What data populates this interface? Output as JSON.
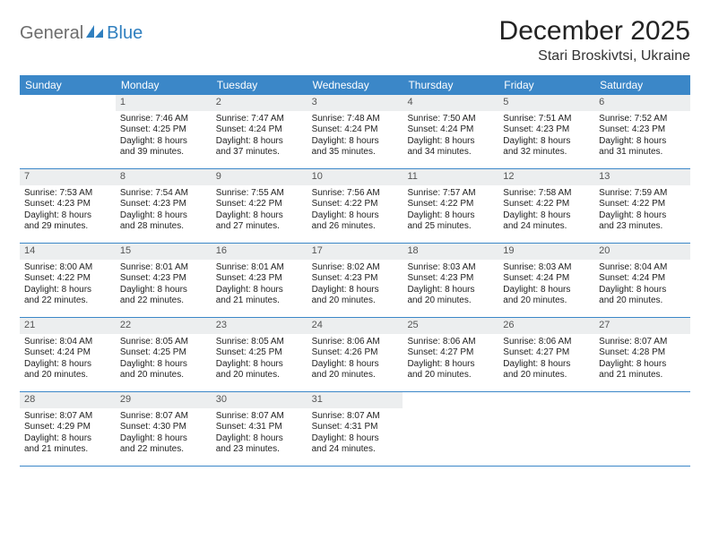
{
  "logo": {
    "part1": "General",
    "part2": "Blue"
  },
  "title": "December 2025",
  "location": "Stari Broskivtsi, Ukraine",
  "colors": {
    "header_bg": "#3b87c8",
    "header_text": "#ffffff",
    "daynum_bg": "#eceeef",
    "rule": "#3b87c8",
    "logo_gray": "#6d6d6d",
    "logo_blue": "#2f7fbf"
  },
  "weekdays": [
    "Sunday",
    "Monday",
    "Tuesday",
    "Wednesday",
    "Thursday",
    "Friday",
    "Saturday"
  ],
  "weeks": [
    [
      {
        "empty": true
      },
      {
        "n": "1",
        "sr": "Sunrise: 7:46 AM",
        "ss": "Sunset: 4:25 PM",
        "d1": "Daylight: 8 hours",
        "d2": "and 39 minutes."
      },
      {
        "n": "2",
        "sr": "Sunrise: 7:47 AM",
        "ss": "Sunset: 4:24 PM",
        "d1": "Daylight: 8 hours",
        "d2": "and 37 minutes."
      },
      {
        "n": "3",
        "sr": "Sunrise: 7:48 AM",
        "ss": "Sunset: 4:24 PM",
        "d1": "Daylight: 8 hours",
        "d2": "and 35 minutes."
      },
      {
        "n": "4",
        "sr": "Sunrise: 7:50 AM",
        "ss": "Sunset: 4:24 PM",
        "d1": "Daylight: 8 hours",
        "d2": "and 34 minutes."
      },
      {
        "n": "5",
        "sr": "Sunrise: 7:51 AM",
        "ss": "Sunset: 4:23 PM",
        "d1": "Daylight: 8 hours",
        "d2": "and 32 minutes."
      },
      {
        "n": "6",
        "sr": "Sunrise: 7:52 AM",
        "ss": "Sunset: 4:23 PM",
        "d1": "Daylight: 8 hours",
        "d2": "and 31 minutes."
      }
    ],
    [
      {
        "n": "7",
        "sr": "Sunrise: 7:53 AM",
        "ss": "Sunset: 4:23 PM",
        "d1": "Daylight: 8 hours",
        "d2": "and 29 minutes."
      },
      {
        "n": "8",
        "sr": "Sunrise: 7:54 AM",
        "ss": "Sunset: 4:23 PM",
        "d1": "Daylight: 8 hours",
        "d2": "and 28 minutes."
      },
      {
        "n": "9",
        "sr": "Sunrise: 7:55 AM",
        "ss": "Sunset: 4:22 PM",
        "d1": "Daylight: 8 hours",
        "d2": "and 27 minutes."
      },
      {
        "n": "10",
        "sr": "Sunrise: 7:56 AM",
        "ss": "Sunset: 4:22 PM",
        "d1": "Daylight: 8 hours",
        "d2": "and 26 minutes."
      },
      {
        "n": "11",
        "sr": "Sunrise: 7:57 AM",
        "ss": "Sunset: 4:22 PM",
        "d1": "Daylight: 8 hours",
        "d2": "and 25 minutes."
      },
      {
        "n": "12",
        "sr": "Sunrise: 7:58 AM",
        "ss": "Sunset: 4:22 PM",
        "d1": "Daylight: 8 hours",
        "d2": "and 24 minutes."
      },
      {
        "n": "13",
        "sr": "Sunrise: 7:59 AM",
        "ss": "Sunset: 4:22 PM",
        "d1": "Daylight: 8 hours",
        "d2": "and 23 minutes."
      }
    ],
    [
      {
        "n": "14",
        "sr": "Sunrise: 8:00 AM",
        "ss": "Sunset: 4:22 PM",
        "d1": "Daylight: 8 hours",
        "d2": "and 22 minutes."
      },
      {
        "n": "15",
        "sr": "Sunrise: 8:01 AM",
        "ss": "Sunset: 4:23 PM",
        "d1": "Daylight: 8 hours",
        "d2": "and 22 minutes."
      },
      {
        "n": "16",
        "sr": "Sunrise: 8:01 AM",
        "ss": "Sunset: 4:23 PM",
        "d1": "Daylight: 8 hours",
        "d2": "and 21 minutes."
      },
      {
        "n": "17",
        "sr": "Sunrise: 8:02 AM",
        "ss": "Sunset: 4:23 PM",
        "d1": "Daylight: 8 hours",
        "d2": "and 20 minutes."
      },
      {
        "n": "18",
        "sr": "Sunrise: 8:03 AM",
        "ss": "Sunset: 4:23 PM",
        "d1": "Daylight: 8 hours",
        "d2": "and 20 minutes."
      },
      {
        "n": "19",
        "sr": "Sunrise: 8:03 AM",
        "ss": "Sunset: 4:24 PM",
        "d1": "Daylight: 8 hours",
        "d2": "and 20 minutes."
      },
      {
        "n": "20",
        "sr": "Sunrise: 8:04 AM",
        "ss": "Sunset: 4:24 PM",
        "d1": "Daylight: 8 hours",
        "d2": "and 20 minutes."
      }
    ],
    [
      {
        "n": "21",
        "sr": "Sunrise: 8:04 AM",
        "ss": "Sunset: 4:24 PM",
        "d1": "Daylight: 8 hours",
        "d2": "and 20 minutes."
      },
      {
        "n": "22",
        "sr": "Sunrise: 8:05 AM",
        "ss": "Sunset: 4:25 PM",
        "d1": "Daylight: 8 hours",
        "d2": "and 20 minutes."
      },
      {
        "n": "23",
        "sr": "Sunrise: 8:05 AM",
        "ss": "Sunset: 4:25 PM",
        "d1": "Daylight: 8 hours",
        "d2": "and 20 minutes."
      },
      {
        "n": "24",
        "sr": "Sunrise: 8:06 AM",
        "ss": "Sunset: 4:26 PM",
        "d1": "Daylight: 8 hours",
        "d2": "and 20 minutes."
      },
      {
        "n": "25",
        "sr": "Sunrise: 8:06 AM",
        "ss": "Sunset: 4:27 PM",
        "d1": "Daylight: 8 hours",
        "d2": "and 20 minutes."
      },
      {
        "n": "26",
        "sr": "Sunrise: 8:06 AM",
        "ss": "Sunset: 4:27 PM",
        "d1": "Daylight: 8 hours",
        "d2": "and 20 minutes."
      },
      {
        "n": "27",
        "sr": "Sunrise: 8:07 AM",
        "ss": "Sunset: 4:28 PM",
        "d1": "Daylight: 8 hours",
        "d2": "and 21 minutes."
      }
    ],
    [
      {
        "n": "28",
        "sr": "Sunrise: 8:07 AM",
        "ss": "Sunset: 4:29 PM",
        "d1": "Daylight: 8 hours",
        "d2": "and 21 minutes."
      },
      {
        "n": "29",
        "sr": "Sunrise: 8:07 AM",
        "ss": "Sunset: 4:30 PM",
        "d1": "Daylight: 8 hours",
        "d2": "and 22 minutes."
      },
      {
        "n": "30",
        "sr": "Sunrise: 8:07 AM",
        "ss": "Sunset: 4:31 PM",
        "d1": "Daylight: 8 hours",
        "d2": "and 23 minutes."
      },
      {
        "n": "31",
        "sr": "Sunrise: 8:07 AM",
        "ss": "Sunset: 4:31 PM",
        "d1": "Daylight: 8 hours",
        "d2": "and 24 minutes."
      },
      {
        "empty": true
      },
      {
        "empty": true
      },
      {
        "empty": true
      }
    ]
  ]
}
